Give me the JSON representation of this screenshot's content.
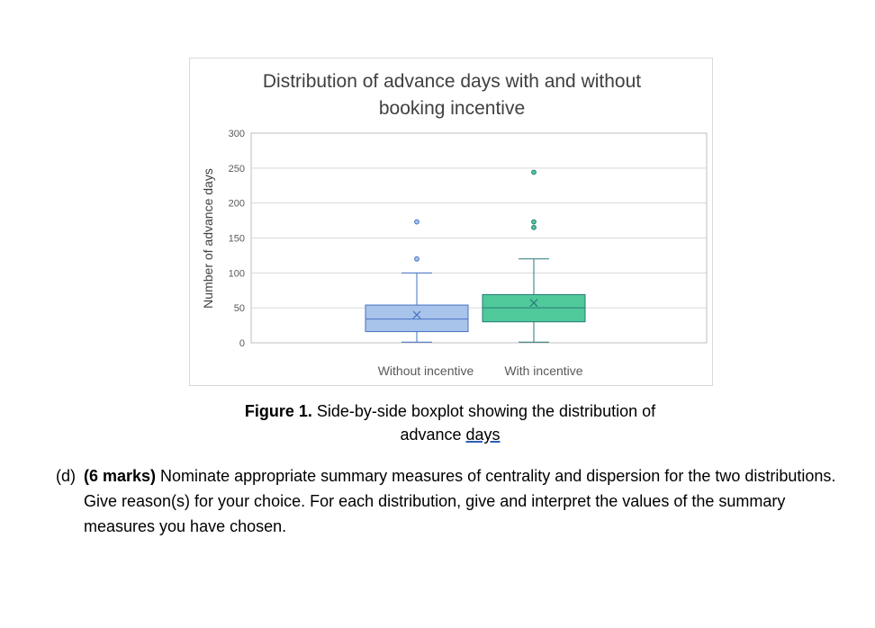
{
  "chart_data": {
    "type": "boxplot",
    "title_lines": [
      "Distribution of advance days with and without",
      "booking incentive"
    ],
    "ylabel": "Number of advance days",
    "xlabel": "",
    "ylim": [
      0,
      300
    ],
    "yticks": [
      0,
      50,
      100,
      150,
      200,
      250,
      300
    ],
    "grid": true,
    "categories": [
      "Without incentive",
      "With incentive"
    ],
    "series": [
      {
        "name": "Without incentive",
        "color": "#a9c4eb",
        "stroke": "#4472c4",
        "min": 1,
        "q1": 16,
        "median": 34,
        "q3": 54,
        "max": 100,
        "mean": 40,
        "outliers": [
          120,
          173
        ]
      },
      {
        "name": "With incentive",
        "color": "#4fc99a",
        "stroke": "#2a7a79",
        "min": 1,
        "q1": 30,
        "median": 50,
        "q3": 69,
        "max": 120,
        "mean": 57,
        "outliers": [
          165,
          173,
          244
        ]
      }
    ]
  },
  "caption": {
    "label": "Figure 1.",
    "text_line1": " Side-by-side boxplot showing the distribution of",
    "text_line2_prefix": "advance ",
    "text_line2_underlined": "days"
  },
  "question": {
    "number": "(d)",
    "marks": "(6 marks)",
    "text": " Nominate appropriate summary measures of centrality and dispersion for the two distributions. Give reason(s) for your choice. For each distribution, give and interpret the values of the summary measures you have chosen."
  }
}
